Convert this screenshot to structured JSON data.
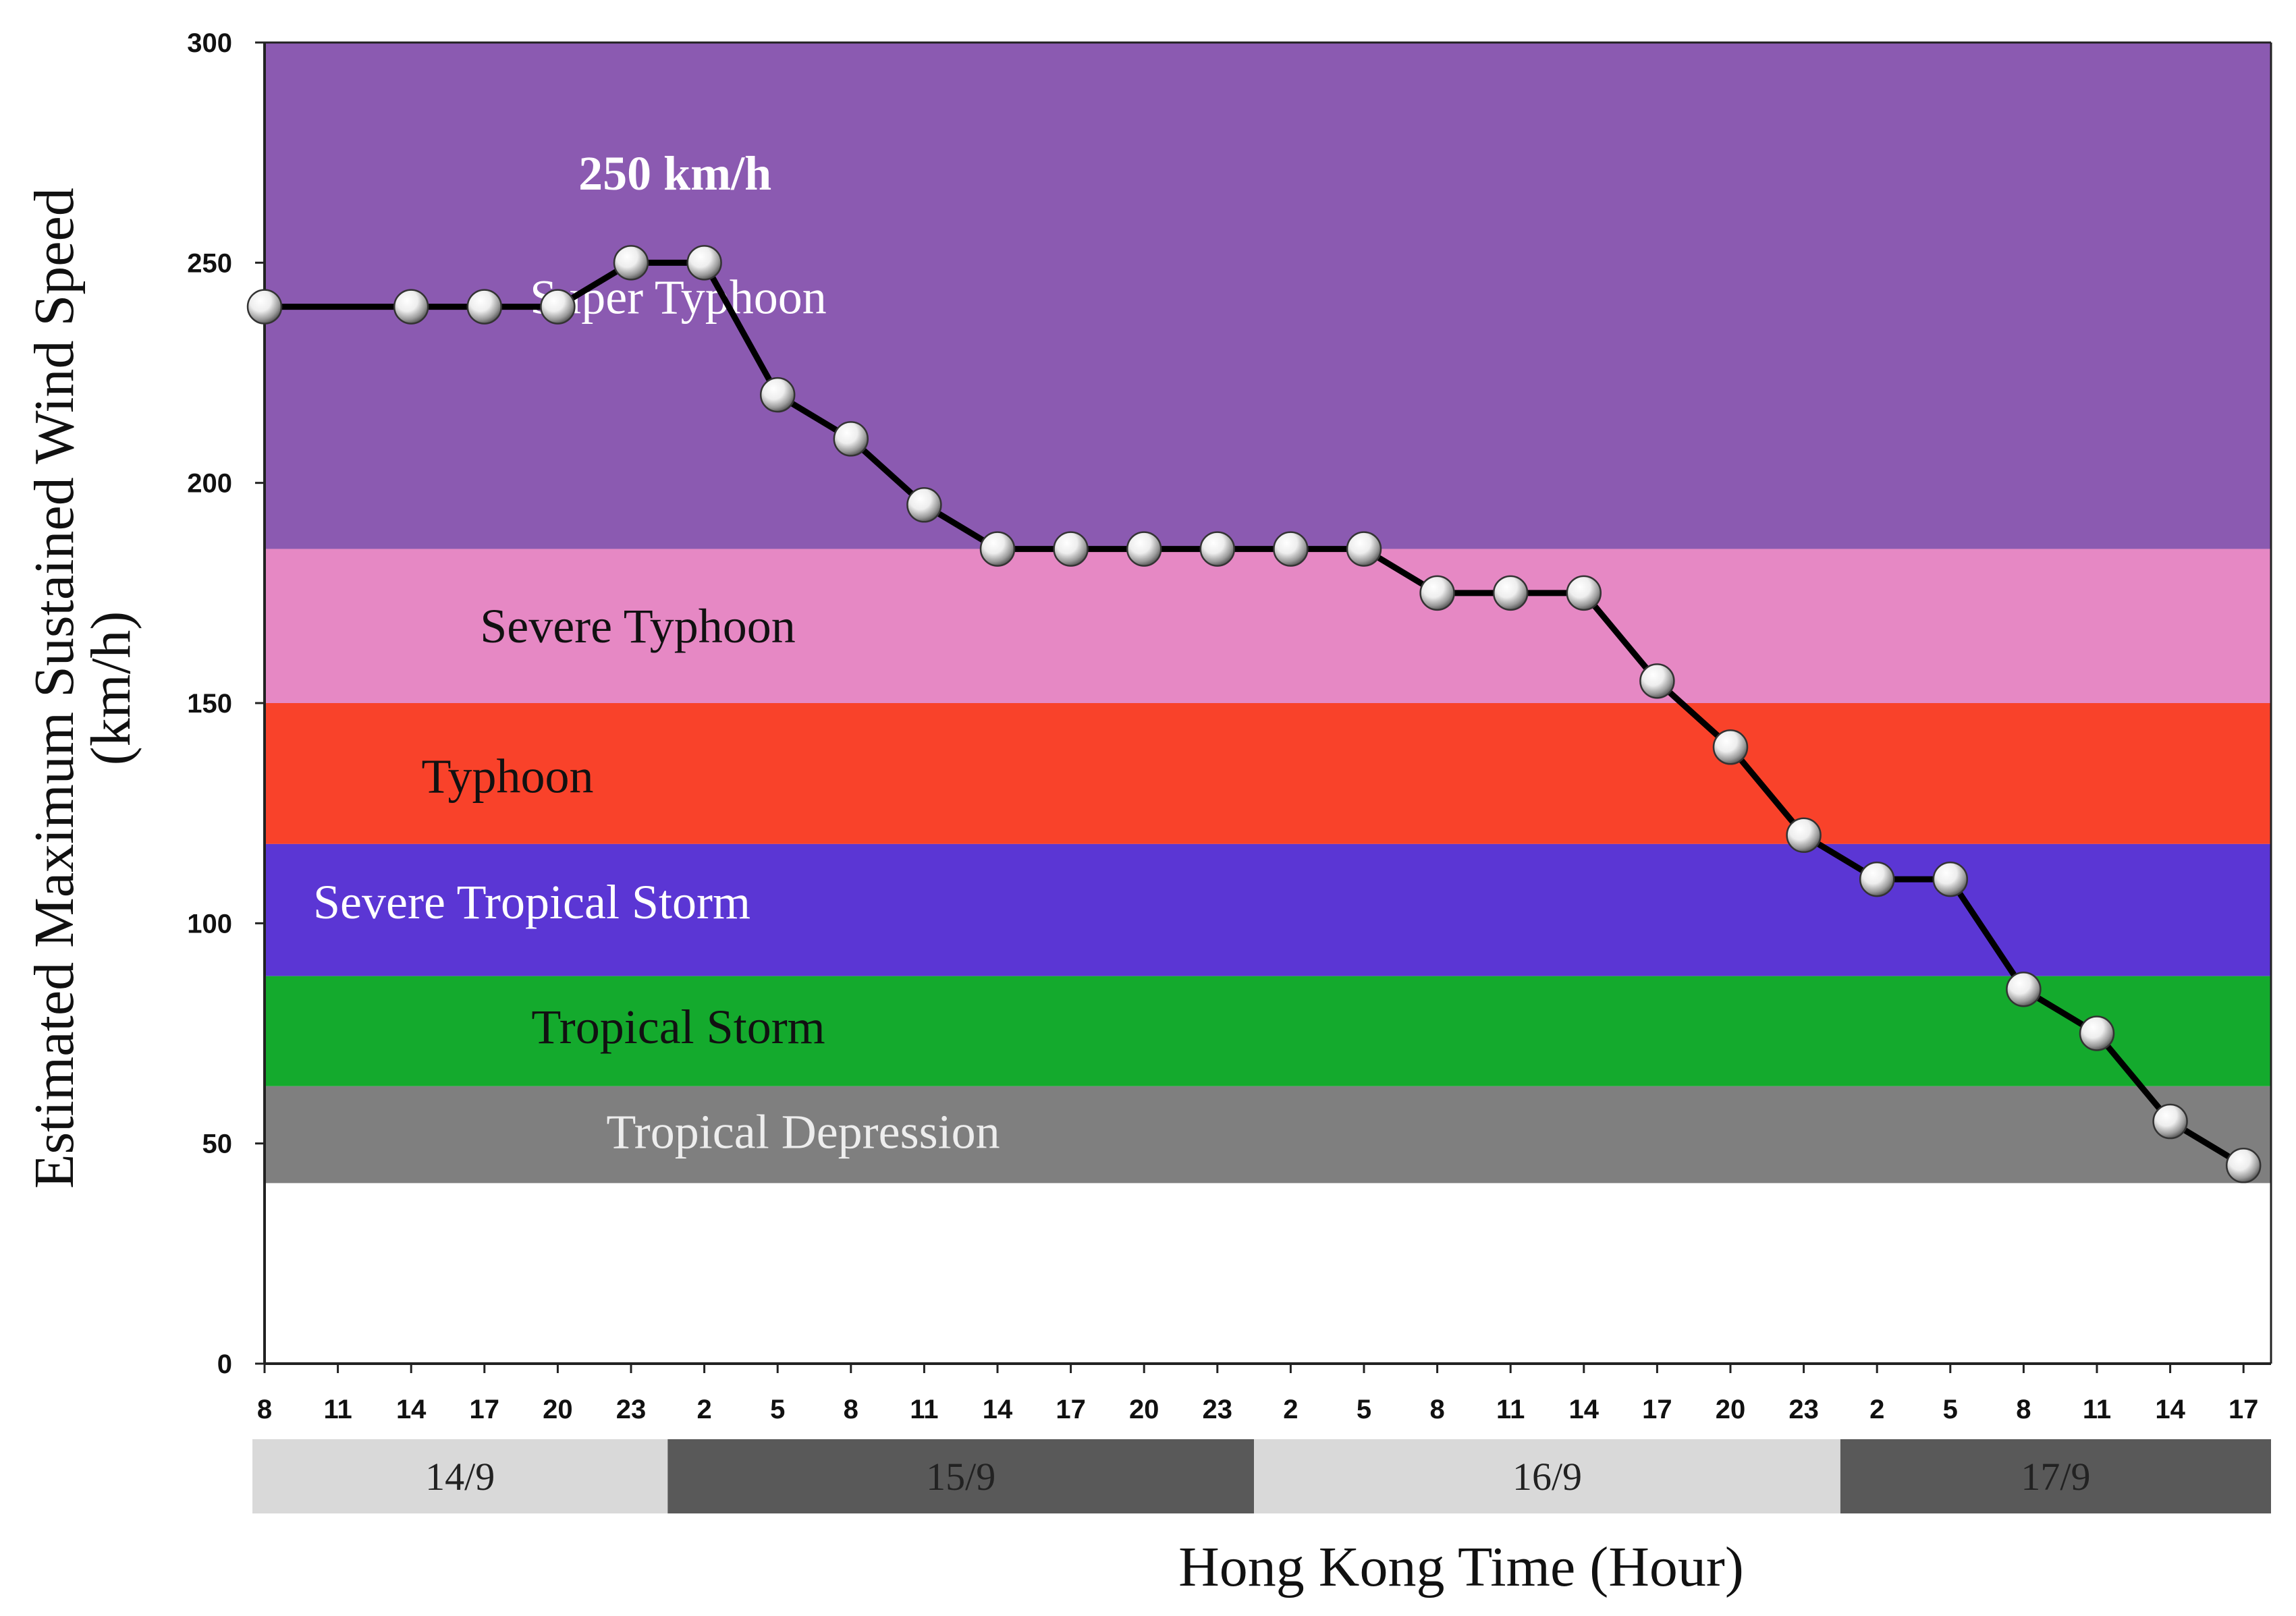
{
  "chart_data": {
    "type": "line",
    "title": "",
    "xlabel": "Hong Kong Time (Hour)",
    "ylabel_line1": "Estimated Maximum Sustained Wind Speed",
    "ylabel_line2": "(km/h)",
    "ylim": [
      0,
      300
    ],
    "y_ticks": [
      "0",
      "50",
      "100",
      "150",
      "200",
      "250",
      "300"
    ],
    "grid": false,
    "x_ticks": [
      "8",
      "11",
      "14",
      "17",
      "20",
      "23",
      "2",
      "5",
      "8",
      "11",
      "14",
      "17",
      "20",
      "23",
      "2",
      "5",
      "8",
      "11",
      "14",
      "17",
      "20",
      "23",
      "2",
      "5",
      "8",
      "11",
      "14",
      "17"
    ],
    "series": [
      {
        "name": "Estimated maximum sustained wind speed (km/h)",
        "values": [
          240,
          null,
          240,
          240,
          240,
          250,
          250,
          220,
          210,
          195,
          185,
          185,
          185,
          185,
          185,
          185,
          175,
          175,
          175,
          155,
          140,
          120,
          110,
          110,
          85,
          75,
          55,
          45
        ],
        "color": "#000000"
      }
    ],
    "bands": [
      {
        "name": "Super Typhoon",
        "from": 185,
        "to": 300,
        "color": "#8B5AB1",
        "text_color": "#FFFFFF"
      },
      {
        "name": "Severe Typhoon",
        "from": 150,
        "to": 185,
        "color": "#E688C4",
        "text_color": "#111111"
      },
      {
        "name": "Typhoon",
        "from": 118,
        "to": 150,
        "color": "#F9422A",
        "text_color": "#111111"
      },
      {
        "name": "Severe Tropical Storm",
        "from": 88,
        "to": 118,
        "color": "#5B36D4",
        "text_color": "#FFFFFF"
      },
      {
        "name": "Tropical Storm",
        "from": 63,
        "to": 88,
        "color": "#14AA2D",
        "text_color": "#111111"
      },
      {
        "name": "Tropical Depression",
        "from": 41,
        "to": 63,
        "color": "#7F7F7F",
        "text_color": "#EDEDED"
      }
    ],
    "annotations": [
      {
        "text": "250 km/h",
        "x_index": 5.6,
        "y": 270,
        "color": "#FFFFFF"
      }
    ],
    "date_groups": [
      {
        "label": "14/9",
        "first_index": 0,
        "last_index": 5,
        "color": "#D9D9D9",
        "text_color": "#222222"
      },
      {
        "label": "15/9",
        "first_index": 6,
        "last_index": 13,
        "color": "#595959",
        "text_color": "#E8E8E8"
      },
      {
        "label": "16/9",
        "first_index": 14,
        "last_index": 21,
        "color": "#D9D9D9",
        "text_color": "#222222"
      },
      {
        "label": "17/9",
        "first_index": 22,
        "last_index": 27,
        "color": "#595959",
        "text_color": "#E8E8E8"
      }
    ]
  }
}
